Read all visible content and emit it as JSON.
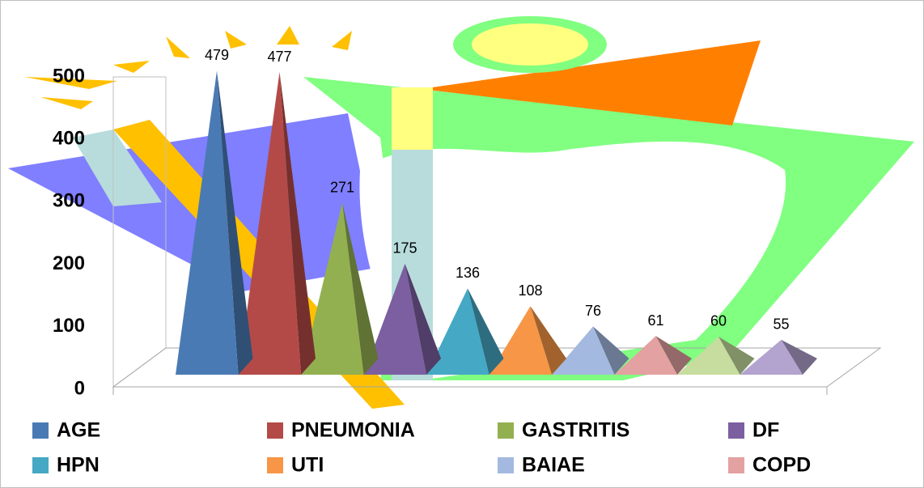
{
  "chart_data": {
    "type": "pyramid3d",
    "categories": [
      "AGE",
      "PNEUMONIA",
      "GASTRITIS",
      "DF",
      "HPN",
      "UTI",
      "BAIAE",
      "COPD",
      null,
      null
    ],
    "values": [
      479,
      477,
      271,
      175,
      136,
      108,
      76,
      61,
      60,
      55
    ],
    "colors": [
      "#4a7ab4",
      "#b44a47",
      "#93b050",
      "#7c5fa0",
      "#45a8c4",
      "#f79646",
      "#a3b9e0",
      "#e3a1a1",
      "#c7dd9f",
      "#b3a3cf"
    ],
    "ylim": [
      0,
      500
    ],
    "yticks": [
      0,
      100,
      200,
      300,
      400,
      500
    ],
    "legend": "bottom"
  }
}
